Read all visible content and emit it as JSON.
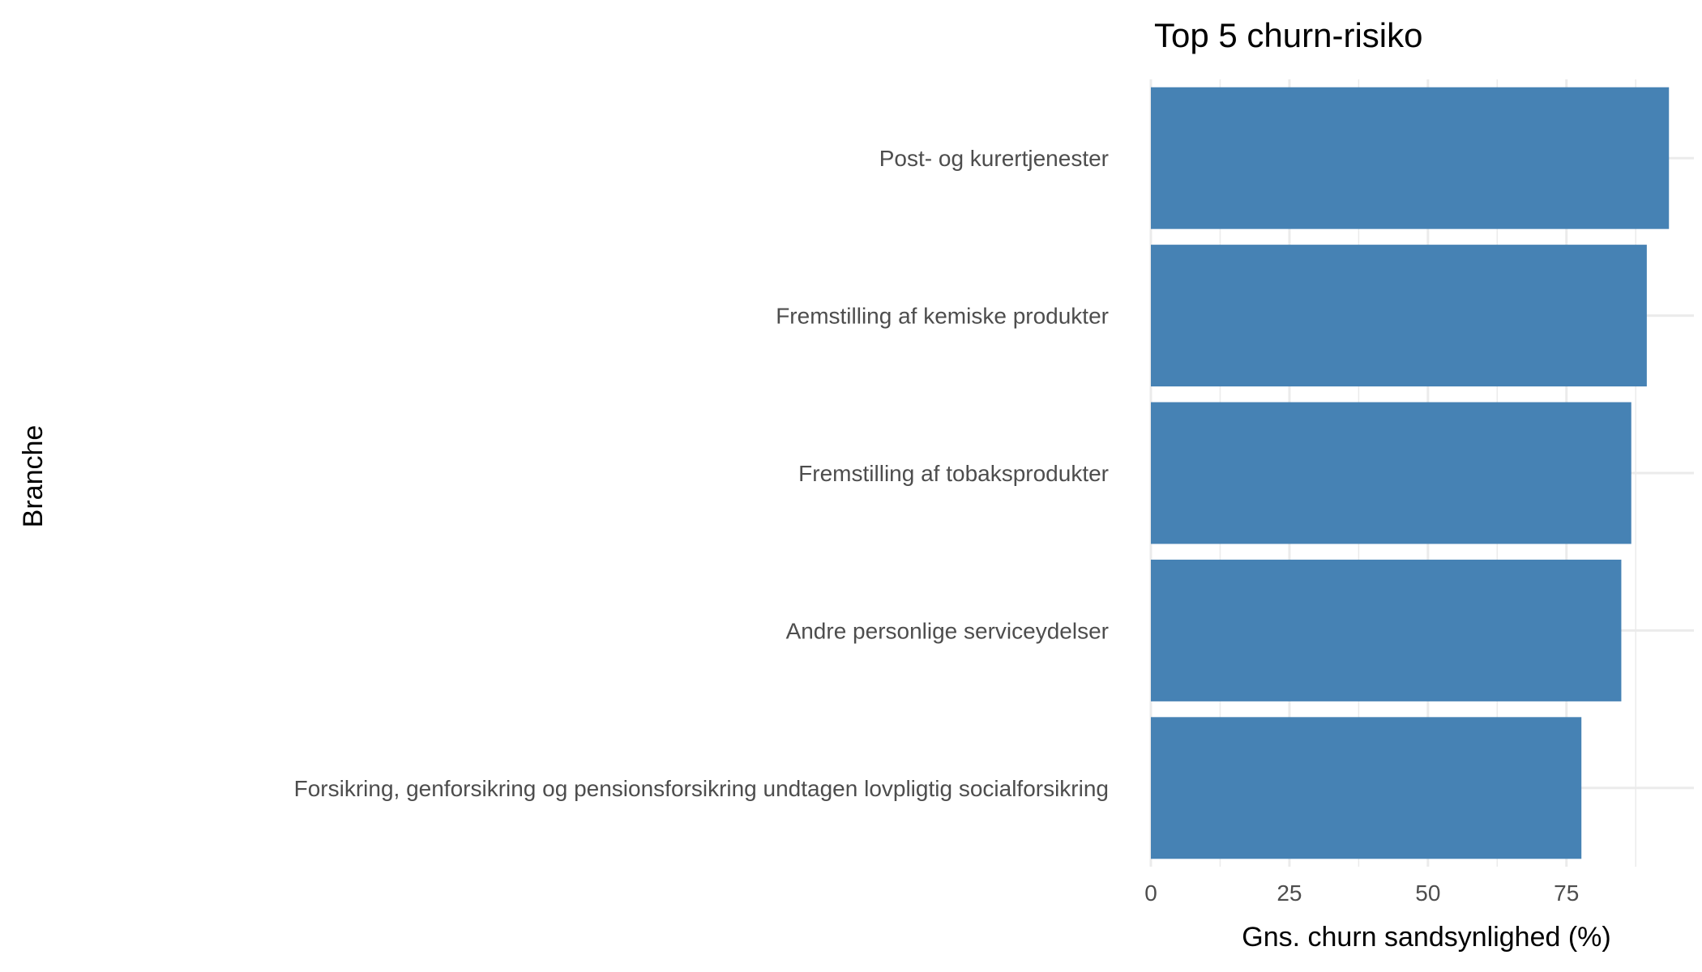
{
  "chart_data": {
    "type": "bar",
    "orientation": "horizontal",
    "title": "Top 5 churn-risiko",
    "xlabel": "Gns. churn sandsynlighed (%)",
    "ylabel": "Branche",
    "categories": [
      "Post- og kurertjenester",
      "Fremstilling af kemiske produkter",
      "Fremstilling af tobaksprodukter",
      "Andre personlige serviceydelser",
      "Forsikring, genforsikring og pensionsforsikring undtagen lovpligtig socialforsikring"
    ],
    "values": [
      93.5,
      89.5,
      86.7,
      84.9,
      77.7
    ],
    "xlim": [
      0,
      98
    ],
    "xticks": [
      0,
      25,
      50,
      75
    ],
    "grid": true,
    "legend": "none",
    "bar_color": "#4682B4",
    "grid_color": "#ebebeb"
  }
}
